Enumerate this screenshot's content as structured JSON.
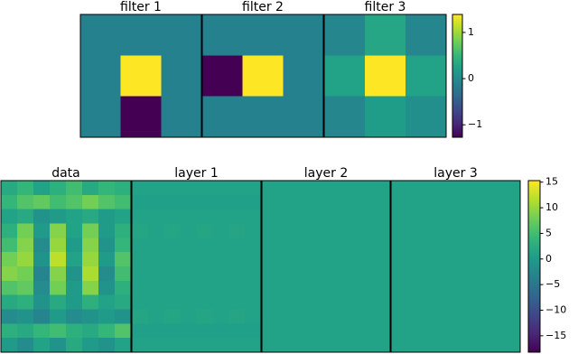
{
  "chart_data": [
    {
      "type": "heatmap",
      "colormap": [
        "#440154",
        "#482878",
        "#3e4989",
        "#31688e",
        "#26828e",
        "#1f9e89",
        "#35b779",
        "#6ece58",
        "#b5de2b",
        "#fde725"
      ],
      "clim": [
        -1.27,
        1.39
      ],
      "cticks": [
        {
          "value": 1,
          "label": "1"
        },
        {
          "value": 0,
          "label": "0"
        },
        {
          "value": -1,
          "label": "−1"
        }
      ],
      "panels": [
        {
          "title": "filter 1",
          "values": [
            [
              -0.1,
              -0.1,
              -0.1
            ],
            [
              -0.1,
              1.39,
              -0.1
            ],
            [
              -0.1,
              -1.27,
              -0.1
            ]
          ]
        },
        {
          "title": "filter 2",
          "values": [
            [
              -0.1,
              -0.1,
              -0.1
            ],
            [
              -1.27,
              1.39,
              -0.1
            ],
            [
              -0.1,
              -0.1,
              -0.1
            ]
          ]
        },
        {
          "title": "filter 3",
          "values": [
            [
              -0.05,
              0.3,
              -0.05
            ],
            [
              0.25,
              1.39,
              0.25
            ],
            [
              -0.05,
              0.2,
              0.05
            ]
          ]
        }
      ]
    },
    {
      "type": "heatmap",
      "colormap": [
        "#440154",
        "#482878",
        "#3e4989",
        "#31688e",
        "#26828e",
        "#1f9e89",
        "#35b779",
        "#6ece58",
        "#b5de2b",
        "#fde725"
      ],
      "clim": [
        -18.2,
        15.3
      ],
      "cticks": [
        15,
        10,
        5,
        0,
        {
          "value": -5,
          "label": "−5"
        },
        {
          "value": -10,
          "label": "−10"
        },
        {
          "value": -15,
          "label": "−15"
        }
      ],
      "panels": [
        {
          "title": "data",
          "values": [
            [
              2,
              4,
              1,
              3,
              5,
              2,
              4,
              3
            ],
            [
              4,
              6,
              7,
              5,
              6,
              8,
              6,
              5
            ],
            [
              1,
              2,
              -1,
              0,
              1,
              2,
              0,
              1
            ],
            [
              3,
              8,
              0,
              9,
              1,
              8,
              0,
              3
            ],
            [
              5,
              9,
              -2,
              10,
              0,
              9,
              -1,
              4
            ],
            [
              8,
              10,
              -1,
              12,
              1,
              10,
              0,
              6
            ],
            [
              9,
              8,
              -3,
              9,
              -1,
              11,
              -2,
              5
            ],
            [
              6,
              7,
              -2,
              8,
              0,
              9,
              -1,
              3
            ],
            [
              2,
              3,
              -1,
              2,
              0,
              3,
              1,
              2
            ],
            [
              -2,
              -1,
              -3,
              0,
              -2,
              -1,
              0,
              -1
            ],
            [
              3,
              2,
              4,
              5,
              3,
              2,
              4,
              6
            ],
            [
              0,
              -2,
              1,
              -1,
              2,
              0,
              -1,
              1
            ]
          ]
        },
        {
          "title": "layer 1",
          "values": [
            [
              1,
              1,
              1,
              1,
              1,
              1,
              1,
              1
            ],
            [
              0.5,
              0.5,
              0.5,
              0.5,
              0.5,
              0.5,
              0.5,
              0.5
            ],
            [
              1,
              1,
              1,
              1,
              1,
              1,
              1,
              1
            ],
            [
              1.5,
              1,
              1.5,
              1,
              1.5,
              1,
              1.5,
              1
            ],
            [
              1,
              1,
              1,
              1,
              1,
              1,
              1,
              1
            ],
            [
              1,
              1,
              1,
              1,
              1,
              1,
              1,
              1
            ],
            [
              1,
              1,
              1,
              1,
              1,
              1,
              1,
              1
            ],
            [
              1,
              1,
              1,
              1,
              1,
              1,
              1,
              1
            ],
            [
              1,
              1,
              1,
              1,
              1,
              1,
              1,
              1
            ],
            [
              1.5,
              1,
              1.5,
              1,
              1.5,
              1,
              1.5,
              1
            ],
            [
              0.5,
              0.5,
              0.5,
              0.5,
              0.5,
              0.5,
              0.5,
              0.5
            ],
            [
              1,
              1,
              1,
              1,
              1,
              1,
              1,
              1
            ]
          ]
        },
        {
          "title": "layer 2",
          "values": [
            [
              1,
              1,
              1,
              1,
              1,
              1,
              1,
              1
            ],
            [
              1,
              1,
              1,
              1,
              1,
              1,
              1,
              1
            ],
            [
              1,
              1,
              1,
              1,
              1,
              1,
              1,
              1
            ],
            [
              1,
              1,
              1,
              1,
              1,
              1,
              1,
              1
            ],
            [
              1,
              1,
              1,
              1,
              1,
              1,
              1,
              1
            ],
            [
              1,
              1,
              1,
              1,
              1,
              1,
              1,
              1
            ],
            [
              1,
              1,
              1,
              1,
              1,
              1,
              1,
              1
            ],
            [
              1,
              1,
              1,
              1,
              1,
              1,
              1,
              1
            ],
            [
              1,
              1,
              1,
              1,
              1,
              1,
              1,
              1
            ],
            [
              1,
              1,
              1,
              1,
              1,
              1,
              1,
              1
            ],
            [
              1,
              1,
              1,
              1,
              1,
              1,
              1,
              1
            ],
            [
              1,
              1,
              1,
              1,
              1,
              1,
              1,
              1
            ]
          ]
        },
        {
          "title": "layer 3",
          "values": [
            [
              1,
              1,
              1,
              1,
              1,
              1,
              1,
              1
            ],
            [
              1,
              1,
              1,
              1,
              1,
              1,
              1,
              1
            ],
            [
              1,
              1,
              1,
              1,
              1,
              1,
              1,
              1
            ],
            [
              1,
              1,
              1,
              1,
              1,
              1,
              1,
              1
            ],
            [
              1,
              1,
              1,
              1,
              1,
              1,
              1,
              1
            ],
            [
              1,
              1,
              1,
              1,
              1,
              1,
              1,
              1
            ],
            [
              1,
              1,
              1,
              1,
              1,
              1,
              1,
              1
            ],
            [
              1,
              1,
              1,
              1,
              1,
              1,
              1,
              1
            ],
            [
              1,
              1,
              1,
              1,
              1,
              1,
              1,
              1
            ],
            [
              1,
              1,
              1,
              1,
              1,
              1,
              1,
              1
            ],
            [
              1,
              1,
              1,
              1,
              1,
              1,
              1,
              1
            ],
            [
              1,
              1,
              1,
              1,
              1,
              1,
              1,
              1
            ]
          ]
        }
      ]
    }
  ]
}
